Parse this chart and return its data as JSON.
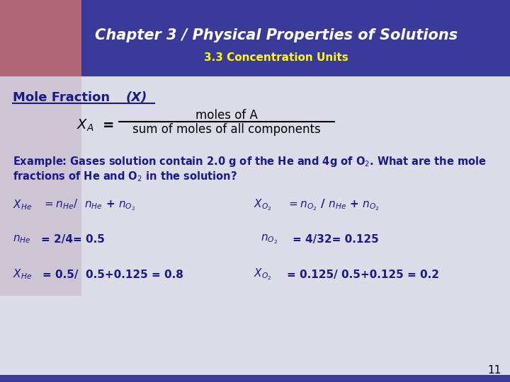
{
  "header_bg": "#3a3a9a",
  "header_title": "Chapter 3 / Physical Properties of Solutions",
  "header_subtitle": "3.3 Concentration Units",
  "header_title_color": "#ffffff",
  "header_subtitle_color": "#ffff00",
  "body_bg": "#dcdce8",
  "text_color": "#1a1a8a",
  "formula_numerator": "moles of A",
  "formula_denominator": "sum of moles of all components",
  "page_number": "11"
}
